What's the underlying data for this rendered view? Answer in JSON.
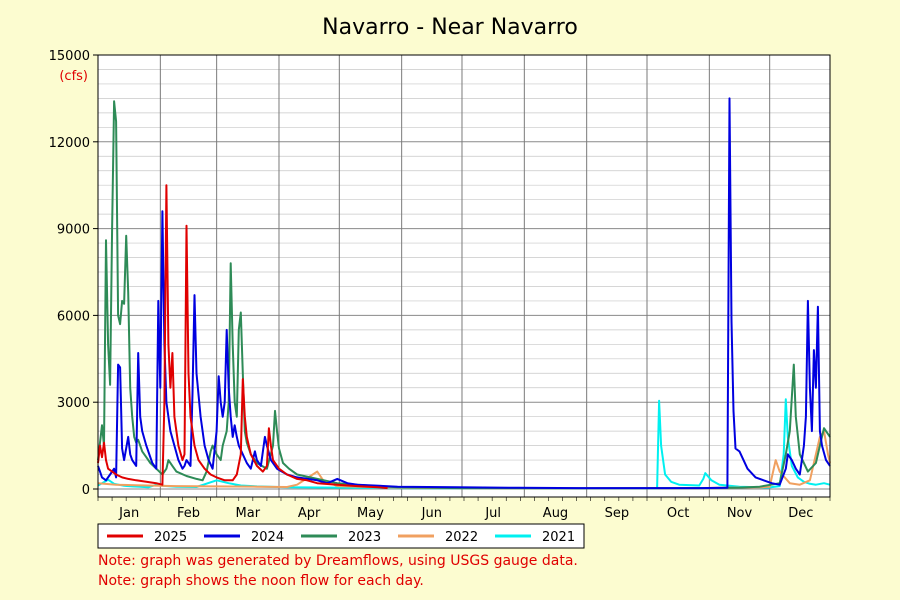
{
  "chart_data": {
    "type": "line",
    "title": "Navarro - Near Navarro",
    "ylabel": "(cfs)",
    "ylim": [
      0,
      15000
    ],
    "yticks": [
      0,
      3000,
      6000,
      9000,
      12000,
      15000
    ],
    "xlim": [
      1,
      365
    ],
    "months": [
      "Jan",
      "Feb",
      "Mar",
      "Apr",
      "May",
      "Jun",
      "Jul",
      "Aug",
      "Sep",
      "Oct",
      "Nov",
      "Dec"
    ],
    "month_starts": [
      1,
      32,
      60,
      91,
      121,
      152,
      182,
      213,
      244,
      274,
      305,
      335
    ],
    "grid": true,
    "legend_position": "bottom",
    "series": [
      {
        "name": "2021",
        "color": "#00f0f0",
        "points": [
          [
            1,
            120
          ],
          [
            3,
            200
          ],
          [
            6,
            320
          ],
          [
            9,
            180
          ],
          [
            14,
            110
          ],
          [
            18,
            90
          ],
          [
            22,
            80
          ],
          [
            26,
            60
          ],
          [
            30,
            150
          ],
          [
            33,
            110
          ],
          [
            40,
            80
          ],
          [
            50,
            70
          ],
          [
            60,
            300
          ],
          [
            66,
            200
          ],
          [
            72,
            120
          ],
          [
            80,
            90
          ],
          [
            95,
            60
          ],
          [
            120,
            50
          ],
          [
            150,
            30
          ],
          [
            200,
            20
          ],
          [
            270,
            20
          ],
          [
            279,
            20
          ],
          [
            280,
            3050
          ],
          [
            281,
            1500
          ],
          [
            283,
            500
          ],
          [
            286,
            250
          ],
          [
            290,
            150
          ],
          [
            300,
            120
          ],
          [
            302,
            350
          ],
          [
            303,
            550
          ],
          [
            306,
            300
          ],
          [
            310,
            150
          ],
          [
            320,
            80
          ],
          [
            330,
            60
          ],
          [
            334,
            50
          ],
          [
            340,
            100
          ],
          [
            342,
            1200
          ],
          [
            343,
            3100
          ],
          [
            344,
            1800
          ],
          [
            346,
            800
          ],
          [
            349,
            400
          ],
          [
            352,
            250
          ],
          [
            355,
            180
          ],
          [
            358,
            150
          ],
          [
            362,
            200
          ],
          [
            365,
            150
          ]
        ]
      },
      {
        "name": "2022",
        "color": "#f0a060",
        "points": [
          [
            1,
            200
          ],
          [
            10,
            150
          ],
          [
            20,
            130
          ],
          [
            40,
            100
          ],
          [
            60,
            90
          ],
          [
            80,
            80
          ],
          [
            95,
            70
          ],
          [
            100,
            150
          ],
          [
            110,
            600
          ],
          [
            113,
            300
          ],
          [
            120,
            100
          ],
          [
            150,
            40
          ],
          [
            200,
            20
          ],
          [
            300,
            30
          ],
          [
            330,
            60
          ],
          [
            335,
            80
          ],
          [
            338,
            1000
          ],
          [
            340,
            600
          ],
          [
            345,
            200
          ],
          [
            350,
            150
          ],
          [
            355,
            300
          ],
          [
            360,
            1800
          ],
          [
            362,
            2000
          ],
          [
            364,
            1200
          ],
          [
            365,
            900
          ]
        ]
      },
      {
        "name": "2023",
        "color": "#2e8b57",
        "points": [
          [
            1,
            1000
          ],
          [
            3,
            2200
          ],
          [
            4,
            1500
          ],
          [
            5,
            8600
          ],
          [
            6,
            5000
          ],
          [
            7,
            3600
          ],
          [
            8,
            9000
          ],
          [
            9,
            13400
          ],
          [
            10,
            12700
          ],
          [
            11,
            6000
          ],
          [
            12,
            5700
          ],
          [
            13,
            6500
          ],
          [
            14,
            6400
          ],
          [
            15,
            8750
          ],
          [
            16,
            6800
          ],
          [
            17,
            3500
          ],
          [
            18,
            2500
          ],
          [
            19,
            1800
          ],
          [
            20,
            1600
          ],
          [
            21,
            1700
          ],
          [
            22,
            1500
          ],
          [
            23,
            1300
          ],
          [
            25,
            1100
          ],
          [
            27,
            900
          ],
          [
            30,
            700
          ],
          [
            33,
            500
          ],
          [
            35,
            700
          ],
          [
            36,
            1000
          ],
          [
            38,
            800
          ],
          [
            40,
            600
          ],
          [
            45,
            450
          ],
          [
            50,
            350
          ],
          [
            53,
            300
          ],
          [
            55,
            600
          ],
          [
            57,
            1300
          ],
          [
            58,
            1500
          ],
          [
            60,
            1200
          ],
          [
            62,
            1000
          ],
          [
            63,
            1500
          ],
          [
            65,
            2000
          ],
          [
            66,
            3000
          ],
          [
            67,
            7800
          ],
          [
            68,
            5000
          ],
          [
            69,
            3000
          ],
          [
            70,
            2500
          ],
          [
            71,
            5500
          ],
          [
            72,
            6100
          ],
          [
            73,
            4000
          ],
          [
            74,
            2000
          ],
          [
            75,
            1600
          ],
          [
            77,
            1200
          ],
          [
            80,
            900
          ],
          [
            85,
            700
          ],
          [
            88,
            1500
          ],
          [
            89,
            2700
          ],
          [
            90,
            2000
          ],
          [
            91,
            1400
          ],
          [
            93,
            900
          ],
          [
            96,
            700
          ],
          [
            100,
            500
          ],
          [
            110,
            350
          ],
          [
            120,
            200
          ],
          [
            135,
            120
          ],
          [
            150,
            60
          ],
          [
            180,
            30
          ],
          [
            240,
            20
          ],
          [
            300,
            30
          ],
          [
            320,
            50
          ],
          [
            330,
            80
          ],
          [
            340,
            200
          ],
          [
            343,
            1200
          ],
          [
            345,
            2000
          ],
          [
            347,
            4300
          ],
          [
            348,
            2500
          ],
          [
            350,
            1200
          ],
          [
            354,
            600
          ],
          [
            358,
            900
          ],
          [
            360,
            1500
          ],
          [
            362,
            2100
          ],
          [
            365,
            1800
          ]
        ]
      },
      {
        "name": "2024",
        "color": "#0000e0",
        "points": [
          [
            1,
            800
          ],
          [
            2,
            600
          ],
          [
            3,
            400
          ],
          [
            5,
            300
          ],
          [
            7,
            500
          ],
          [
            9,
            700
          ],
          [
            10,
            400
          ],
          [
            11,
            4300
          ],
          [
            12,
            4200
          ],
          [
            13,
            1400
          ],
          [
            14,
            1000
          ],
          [
            16,
            1800
          ],
          [
            17,
            1200
          ],
          [
            18,
            1000
          ],
          [
            19,
            900
          ],
          [
            20,
            800
          ],
          [
            21,
            4700
          ],
          [
            22,
            2500
          ],
          [
            23,
            2000
          ],
          [
            25,
            1500
          ],
          [
            28,
            900
          ],
          [
            30,
            700
          ],
          [
            31,
            6500
          ],
          [
            32,
            3500
          ],
          [
            33,
            9600
          ],
          [
            34,
            5000
          ],
          [
            35,
            3000
          ],
          [
            37,
            2000
          ],
          [
            39,
            1500
          ],
          [
            41,
            1000
          ],
          [
            43,
            700
          ],
          [
            44,
            800
          ],
          [
            45,
            1000
          ],
          [
            46,
            900
          ],
          [
            47,
            800
          ],
          [
            48,
            3300
          ],
          [
            49,
            6700
          ],
          [
            50,
            4000
          ],
          [
            52,
            2500
          ],
          [
            54,
            1500
          ],
          [
            56,
            1000
          ],
          [
            58,
            700
          ],
          [
            60,
            2000
          ],
          [
            61,
            3900
          ],
          [
            62,
            3000
          ],
          [
            63,
            2500
          ],
          [
            64,
            3000
          ],
          [
            65,
            5500
          ],
          [
            66,
            3500
          ],
          [
            67,
            2500
          ],
          [
            68,
            1800
          ],
          [
            69,
            2200
          ],
          [
            70,
            1800
          ],
          [
            71,
            1500
          ],
          [
            73,
            1200
          ],
          [
            75,
            900
          ],
          [
            77,
            700
          ],
          [
            79,
            1300
          ],
          [
            80,
            1000
          ],
          [
            82,
            800
          ],
          [
            84,
            1800
          ],
          [
            85,
            1500
          ],
          [
            87,
            1000
          ],
          [
            90,
            700
          ],
          [
            95,
            500
          ],
          [
            100,
            400
          ],
          [
            110,
            300
          ],
          [
            115,
            200
          ],
          [
            120,
            350
          ],
          [
            125,
            200
          ],
          [
            130,
            150
          ],
          [
            150,
            80
          ],
          [
            180,
            60
          ],
          [
            210,
            40
          ],
          [
            240,
            30
          ],
          [
            270,
            30
          ],
          [
            300,
            30
          ],
          [
            314,
            40
          ],
          [
            315,
            13500
          ],
          [
            316,
            5800
          ],
          [
            317,
            2700
          ],
          [
            318,
            1400
          ],
          [
            320,
            1300
          ],
          [
            322,
            1000
          ],
          [
            324,
            700
          ],
          [
            328,
            400
          ],
          [
            332,
            300
          ],
          [
            336,
            200
          ],
          [
            340,
            150
          ],
          [
            343,
            700
          ],
          [
            344,
            1200
          ],
          [
            346,
            1000
          ],
          [
            348,
            700
          ],
          [
            350,
            500
          ],
          [
            352,
            1500
          ],
          [
            353,
            2500
          ],
          [
            354,
            6500
          ],
          [
            355,
            3500
          ],
          [
            356,
            2000
          ],
          [
            357,
            4800
          ],
          [
            358,
            3500
          ],
          [
            359,
            6300
          ],
          [
            360,
            2000
          ],
          [
            361,
            1500
          ],
          [
            363,
            1000
          ],
          [
            365,
            800
          ]
        ]
      },
      {
        "name": "2025",
        "color": "#e00000",
        "points": [
          [
            1,
            900
          ],
          [
            2,
            1500
          ],
          [
            3,
            1100
          ],
          [
            4,
            1600
          ],
          [
            5,
            1000
          ],
          [
            6,
            700
          ],
          [
            8,
            600
          ],
          [
            10,
            500
          ],
          [
            13,
            400
          ],
          [
            16,
            350
          ],
          [
            20,
            300
          ],
          [
            25,
            250
          ],
          [
            30,
            200
          ],
          [
            33,
            150
          ],
          [
            34,
            3000
          ],
          [
            35,
            10500
          ],
          [
            36,
            5000
          ],
          [
            37,
            3500
          ],
          [
            38,
            4700
          ],
          [
            39,
            2500
          ],
          [
            41,
            1500
          ],
          [
            43,
            1000
          ],
          [
            44,
            1200
          ],
          [
            45,
            9100
          ],
          [
            46,
            4000
          ],
          [
            47,
            2500
          ],
          [
            49,
            1500
          ],
          [
            51,
            1000
          ],
          [
            54,
            700
          ],
          [
            57,
            500
          ],
          [
            60,
            400
          ],
          [
            64,
            300
          ],
          [
            68,
            300
          ],
          [
            70,
            500
          ],
          [
            72,
            1200
          ],
          [
            73,
            3800
          ],
          [
            74,
            2500
          ],
          [
            75,
            1800
          ],
          [
            77,
            1200
          ],
          [
            80,
            800
          ],
          [
            83,
            600
          ],
          [
            85,
            800
          ],
          [
            86,
            2100
          ],
          [
            87,
            1500
          ],
          [
            88,
            1000
          ],
          [
            91,
            700
          ],
          [
            95,
            500
          ],
          [
            100,
            350
          ],
          [
            105,
            300
          ],
          [
            110,
            200
          ],
          [
            120,
            150
          ],
          [
            130,
            100
          ],
          [
            140,
            60
          ],
          [
            145,
            30
          ]
        ]
      }
    ]
  },
  "notes": [
    "Note: graph was generated by Dreamflows, using USGS gauge data.",
    "Note: graph shows the noon flow for each day."
  ]
}
